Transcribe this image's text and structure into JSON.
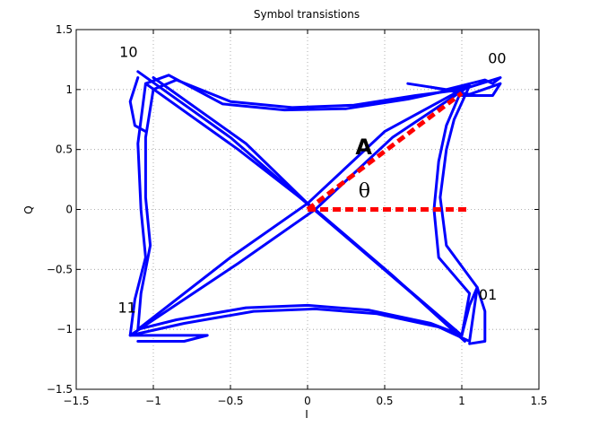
{
  "chart_data": {
    "type": "line",
    "title": "Symbol transistions",
    "xlabel": "I",
    "ylabel": "Q",
    "xlim": [
      -1.5,
      1.5
    ],
    "ylim": [
      -1.5,
      1.5
    ],
    "xticks": [
      -1.5,
      -1,
      -0.5,
      0,
      0.5,
      1,
      1.5
    ],
    "yticks": [
      -1.5,
      -1,
      -0.5,
      0,
      0.5,
      1,
      1.5
    ],
    "xtick_labels": [
      "−1.5",
      "−1",
      "−0.5",
      "0",
      "0.5",
      "1",
      "1.5"
    ],
    "ytick_labels": [
      "−1.5",
      "−1",
      "−0.5",
      "0",
      "0.5",
      "1",
      "1.5"
    ],
    "grid": true,
    "trajectory_color": "#0000ff",
    "vector_color": "#ff0000",
    "series": [
      {
        "style": "solid",
        "points": [
          [
            1.0,
            1.0
          ],
          [
            0.7,
            0.95
          ],
          [
            0.3,
            0.87
          ],
          [
            -0.1,
            0.85
          ],
          [
            -0.5,
            0.9
          ],
          [
            -0.85,
            1.08
          ],
          [
            -1.0,
            1.0
          ],
          [
            -1.05,
            0.6
          ],
          [
            -1.05,
            0.1
          ],
          [
            -1.02,
            -0.3
          ],
          [
            -1.08,
            -0.7
          ],
          [
            -1.1,
            -1.0
          ],
          [
            -0.85,
            -0.92
          ],
          [
            -0.4,
            -0.82
          ],
          [
            0.0,
            -0.8
          ],
          [
            0.4,
            -0.84
          ],
          [
            0.8,
            -0.95
          ],
          [
            1.0,
            -1.05
          ],
          [
            1.05,
            -0.7
          ],
          [
            0.85,
            -0.4
          ],
          [
            0.82,
            0.0
          ],
          [
            0.85,
            0.4
          ],
          [
            0.9,
            0.7
          ],
          [
            1.0,
            1.0
          ],
          [
            0.5,
            0.65
          ],
          [
            0.0,
            0.05
          ],
          [
            -0.5,
            -0.4
          ],
          [
            -1.1,
            -1.0
          ]
        ]
      },
      {
        "style": "solid",
        "points": [
          [
            1.05,
            1.03
          ],
          [
            0.65,
            0.92
          ],
          [
            0.25,
            0.84
          ],
          [
            -0.15,
            0.83
          ],
          [
            -0.55,
            0.88
          ],
          [
            -0.9,
            1.12
          ],
          [
            -1.05,
            1.05
          ],
          [
            -1.1,
            0.55
          ],
          [
            -1.08,
            0.0
          ],
          [
            -1.05,
            -0.4
          ],
          [
            -1.12,
            -0.75
          ],
          [
            -1.15,
            -1.05
          ],
          [
            -0.8,
            -0.95
          ],
          [
            -0.35,
            -0.85
          ],
          [
            0.05,
            -0.83
          ],
          [
            0.45,
            -0.87
          ],
          [
            0.85,
            -0.98
          ],
          [
            1.05,
            -1.1
          ],
          [
            1.1,
            -0.65
          ],
          [
            0.9,
            -0.3
          ],
          [
            0.86,
            0.1
          ],
          [
            0.9,
            0.5
          ],
          [
            0.95,
            0.75
          ],
          [
            1.05,
            1.03
          ],
          [
            0.55,
            0.6
          ],
          [
            0.05,
            0.0
          ],
          [
            -0.45,
            -0.45
          ],
          [
            -1.15,
            -1.05
          ]
        ]
      },
      {
        "style": "solid",
        "points": [
          [
            -1.0,
            1.1
          ],
          [
            -0.4,
            0.55
          ],
          [
            0.0,
            0.05
          ],
          [
            0.5,
            -0.5
          ],
          [
            1.0,
            -1.05
          ]
        ]
      },
      {
        "style": "solid",
        "points": [
          [
            -1.05,
            1.05
          ],
          [
            -0.45,
            0.5
          ],
          [
            0.05,
            0.0
          ],
          [
            0.55,
            -0.55
          ],
          [
            1.02,
            -1.1
          ]
        ]
      },
      {
        "style": "solid",
        "points": [
          [
            -1.1,
            1.15
          ],
          [
            -0.5,
            0.6
          ],
          [
            -0.05,
            0.1
          ],
          [
            0.45,
            -0.45
          ],
          [
            0.95,
            -1.0
          ]
        ]
      },
      {
        "style": "solid",
        "points": [
          [
            -1.1,
            1.1
          ],
          [
            -1.15,
            0.9
          ],
          [
            -1.12,
            0.7
          ],
          [
            -1.05,
            0.65
          ]
        ]
      },
      {
        "style": "solid",
        "points": [
          [
            -1.15,
            -1.05
          ],
          [
            -0.9,
            -1.05
          ],
          [
            -0.65,
            -1.05
          ],
          [
            -0.8,
            -1.1
          ],
          [
            -1.1,
            -1.1
          ]
        ]
      },
      {
        "style": "solid",
        "points": [
          [
            1.0,
            -1.05
          ],
          [
            1.05,
            -0.8
          ],
          [
            1.1,
            -0.65
          ],
          [
            1.15,
            -0.85
          ],
          [
            1.15,
            -1.1
          ],
          [
            1.05,
            -1.12
          ]
        ]
      },
      {
        "style": "solid",
        "points": [
          [
            0.65,
            1.05
          ],
          [
            0.9,
            1.0
          ],
          [
            1.15,
            1.08
          ],
          [
            1.2,
            1.05
          ],
          [
            1.25,
            1.1
          ],
          [
            1.0,
            1.0
          ]
        ]
      },
      {
        "style": "solid",
        "points": [
          [
            0.8,
            1.02
          ],
          [
            1.05,
            0.96
          ],
          [
            1.25,
            1.05
          ],
          [
            1.2,
            0.95
          ],
          [
            1.0,
            0.95
          ]
        ]
      }
    ],
    "vector": {
      "from": [
        0.0,
        0.0
      ],
      "to": [
        1.0,
        0.97
      ]
    },
    "reference": {
      "from": [
        0.0,
        0.0
      ],
      "to": [
        1.05,
        0.0
      ]
    },
    "annotations": [
      {
        "text": "00",
        "x": 1.17,
        "y": 1.22,
        "style": "symbol"
      },
      {
        "text": "10",
        "x": -1.22,
        "y": 1.27,
        "style": "symbol"
      },
      {
        "text": "11",
        "x": -1.23,
        "y": -0.86,
        "style": "symbol"
      },
      {
        "text": "01",
        "x": 1.11,
        "y": -0.75,
        "style": "symbol"
      },
      {
        "text": "A",
        "x": 0.31,
        "y": 0.46,
        "style": "big"
      },
      {
        "text": "θ",
        "x": 0.33,
        "y": 0.1,
        "style": "theta"
      }
    ]
  }
}
